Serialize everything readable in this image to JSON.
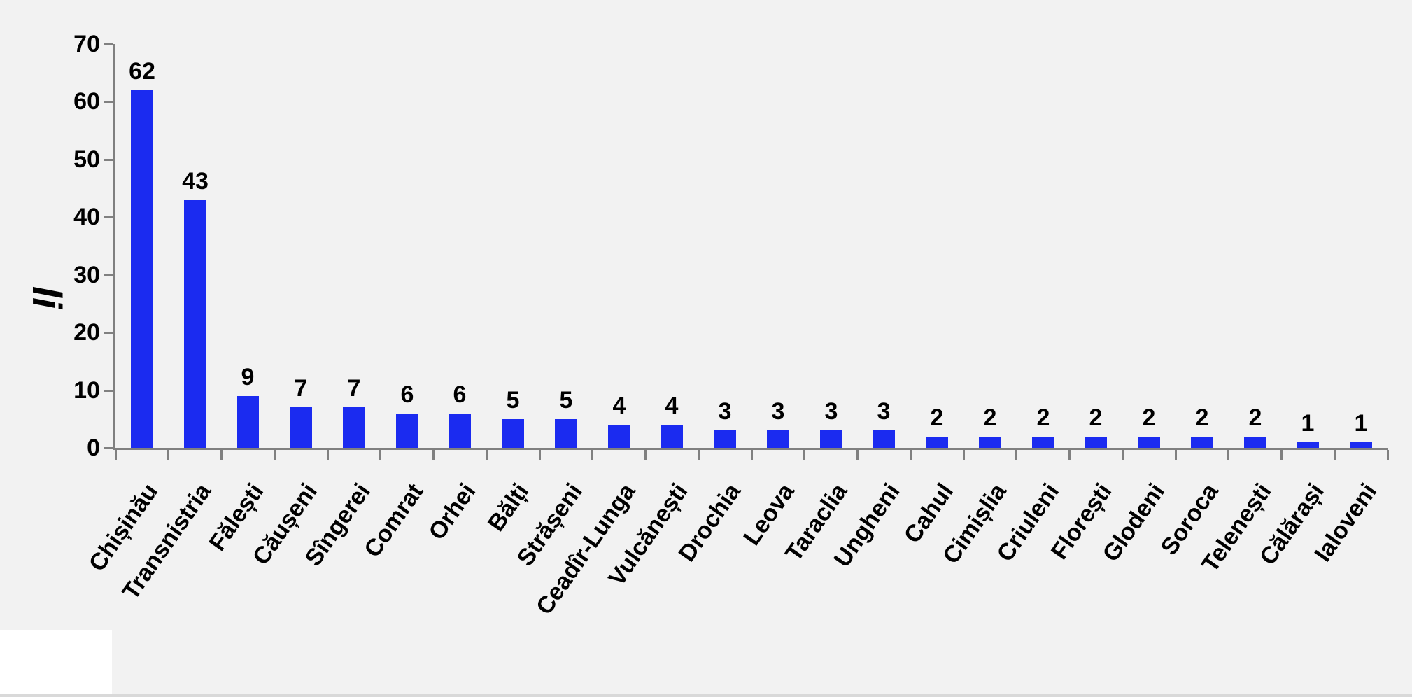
{
  "chart_data": {
    "type": "bar",
    "title": "",
    "xlabel": "",
    "ylabel": "li",
    "categories": [
      "Chișinău",
      "Transnistria",
      "Fălești",
      "Căușeni",
      "Sîngerei",
      "Comrat",
      "Orhei",
      "Bălți",
      "Strășeni",
      "Ceadîr-Lunga",
      "Vulcănești",
      "Drochia",
      "Leova",
      "Taraclia",
      "Ungheni",
      "Cahul",
      "Cimișlia",
      "Criuleni",
      "Florești",
      "Glodeni",
      "Soroca",
      "Telenești",
      "Călărași",
      "Ialoveni"
    ],
    "values": [
      62,
      43,
      9,
      7,
      7,
      6,
      6,
      5,
      5,
      4,
      4,
      3,
      3,
      3,
      3,
      2,
      2,
      2,
      2,
      2,
      2,
      2,
      1,
      1
    ],
    "ylim": [
      0,
      70
    ],
    "yticks": [
      0,
      10,
      20,
      30,
      40,
      50,
      60,
      70
    ],
    "grid": false,
    "legend": null,
    "data_labels_shown": true,
    "legend_position": "none",
    "colors": {
      "bar": "#1b2bf0",
      "axis": "#808080",
      "text": "#000000",
      "background": "#f2f2f2",
      "bottom_strip": "#d9d9d9",
      "overlay_box": "#ffffff"
    }
  }
}
